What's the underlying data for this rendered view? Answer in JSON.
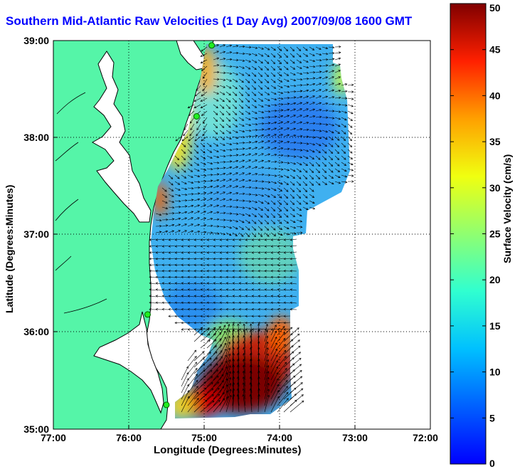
{
  "title": "Southern Mid-Atlantic Raw Velocities (1 Day Avg) 2007/09/08 1600 GMT",
  "map": {
    "xlabel": "Longitude (Degrees:Minutes)",
    "ylabel": "Latitude (Degrees:Minutes)",
    "x_ticks": [
      "77:00",
      "76:00",
      "75:00",
      "74:00",
      "73:00",
      "72:00"
    ],
    "y_ticks": [
      "39:00",
      "38:00",
      "37:00",
      "36:00",
      "35:00"
    ],
    "lon_range": [
      -77,
      -72
    ],
    "lat_range": [
      35,
      39
    ],
    "grid": true,
    "land_color": "#55f5a8",
    "water_color": "#ffffff"
  },
  "colorbar": {
    "label": "Surface Velocity (cm/s)",
    "ticks": [
      "0",
      "5",
      "10",
      "15",
      "20",
      "25",
      "30",
      "35",
      "40",
      "45",
      "50"
    ],
    "range": [
      0,
      50
    ],
    "colormap": "jet"
  },
  "stations": [
    {
      "lon": -74.9,
      "lat": 38.95
    },
    {
      "lon": -75.1,
      "lat": 38.22
    },
    {
      "lon": -75.75,
      "lat": 36.18
    },
    {
      "lon": -75.5,
      "lat": 35.25
    }
  ]
}
